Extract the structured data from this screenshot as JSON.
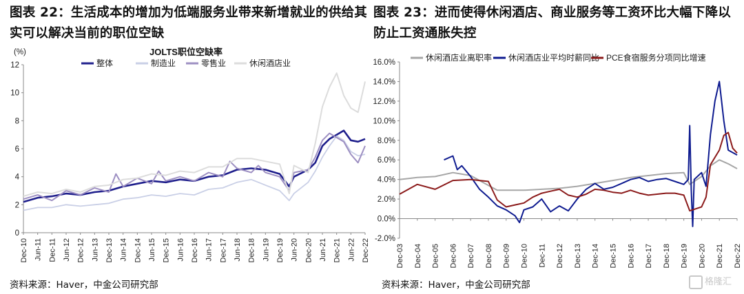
{
  "left": {
    "title": "图表 22：生活成本的增加为低端服务业带来新增就业的供给其实可以解决当前的职位空缺",
    "source": "资料来源：Haver，中金公司研究部"
  },
  "right": {
    "title": "图表 23：进而使得休闲酒店、商业服务等工资环比大幅下降以防止工资通胀失控",
    "source": "资料来源：Haver，中金公司研究部"
  },
  "watermark": "格隆汇",
  "chart_data": [
    {
      "type": "line",
      "title": "JOLTS职位空缺率",
      "unit_label": "(%)",
      "ylim": [
        0,
        12
      ],
      "yticks": [
        0,
        2,
        4,
        6,
        8,
        10,
        12
      ],
      "x_start": "2010-12",
      "x_end": "2022-12",
      "xticks": [
        "Dec-10",
        "Jun-11",
        "Dec-11",
        "Jun-12",
        "Dec-12",
        "Jun-13",
        "Dec-13",
        "Jun-14",
        "Dec-14",
        "Jun-15",
        "Dec-15",
        "Jun-16",
        "Dec-16",
        "Jun-17",
        "Dec-17",
        "Jun-18",
        "Dec-18",
        "Jun-19",
        "Dec-19",
        "Jun-20",
        "Dec-20",
        "Jun-21",
        "Dec-21",
        "Jun-22",
        "Dec-22"
      ],
      "legend_position": "top-center",
      "series": [
        {
          "name": "整体",
          "color": "#1f1f8c",
          "width": 2.6,
          "points": [
            [
              "2010-12",
              2.2
            ],
            [
              "2011-06",
              2.5
            ],
            [
              "2011-12",
              2.6
            ],
            [
              "2012-06",
              2.8
            ],
            [
              "2012-12",
              2.7
            ],
            [
              "2013-06",
              2.9
            ],
            [
              "2013-12",
              3.0
            ],
            [
              "2014-06",
              3.3
            ],
            [
              "2014-12",
              3.5
            ],
            [
              "2015-06",
              3.7
            ],
            [
              "2015-12",
              3.6
            ],
            [
              "2016-06",
              3.8
            ],
            [
              "2016-12",
              3.7
            ],
            [
              "2017-06",
              4.0
            ],
            [
              "2017-12",
              4.1
            ],
            [
              "2018-06",
              4.5
            ],
            [
              "2018-12",
              4.6
            ],
            [
              "2019-06",
              4.5
            ],
            [
              "2019-12",
              4.2
            ],
            [
              "2020-04",
              3.3
            ],
            [
              "2020-06",
              4.0
            ],
            [
              "2020-12",
              4.5
            ],
            [
              "2021-03",
              5.0
            ],
            [
              "2021-06",
              6.2
            ],
            [
              "2021-09",
              6.7
            ],
            [
              "2021-12",
              7.0
            ],
            [
              "2022-03",
              7.3
            ],
            [
              "2022-06",
              6.6
            ],
            [
              "2022-09",
              6.5
            ],
            [
              "2022-12",
              6.7
            ]
          ]
        },
        {
          "name": "制造业",
          "color": "#c9cfe6",
          "width": 1.8,
          "points": [
            [
              "2010-12",
              1.6
            ],
            [
              "2011-06",
              1.8
            ],
            [
              "2011-12",
              1.8
            ],
            [
              "2012-06",
              2.0
            ],
            [
              "2012-12",
              1.9
            ],
            [
              "2013-06",
              2.0
            ],
            [
              "2013-12",
              2.1
            ],
            [
              "2014-06",
              2.4
            ],
            [
              "2014-12",
              2.5
            ],
            [
              "2015-06",
              2.7
            ],
            [
              "2015-12",
              2.6
            ],
            [
              "2016-06",
              2.8
            ],
            [
              "2016-12",
              2.7
            ],
            [
              "2017-06",
              3.1
            ],
            [
              "2017-12",
              3.2
            ],
            [
              "2018-06",
              3.6
            ],
            [
              "2018-12",
              3.8
            ],
            [
              "2019-06",
              3.4
            ],
            [
              "2019-12",
              3.0
            ],
            [
              "2020-04",
              2.3
            ],
            [
              "2020-06",
              2.8
            ],
            [
              "2020-12",
              3.6
            ],
            [
              "2021-03",
              4.4
            ],
            [
              "2021-06",
              5.4
            ],
            [
              "2021-09",
              6.2
            ],
            [
              "2021-12",
              6.9
            ],
            [
              "2022-03",
              6.6
            ],
            [
              "2022-06",
              5.8
            ],
            [
              "2022-09",
              5.5
            ],
            [
              "2022-12",
              5.6
            ]
          ]
        },
        {
          "name": "零售业",
          "color": "#9d8fc2",
          "width": 2.0,
          "points": [
            [
              "2010-12",
              2.4
            ],
            [
              "2011-06",
              2.7
            ],
            [
              "2011-12",
              2.3
            ],
            [
              "2012-06",
              3.0
            ],
            [
              "2012-12",
              2.7
            ],
            [
              "2013-06",
              3.2
            ],
            [
              "2013-12",
              2.9
            ],
            [
              "2014-03",
              4.2
            ],
            [
              "2014-06",
              3.3
            ],
            [
              "2014-12",
              3.9
            ],
            [
              "2015-06",
              3.5
            ],
            [
              "2015-09",
              4.4
            ],
            [
              "2015-12",
              3.7
            ],
            [
              "2016-06",
              4.0
            ],
            [
              "2016-12",
              3.7
            ],
            [
              "2017-06",
              4.3
            ],
            [
              "2017-12",
              4.0
            ],
            [
              "2018-03",
              5.1
            ],
            [
              "2018-06",
              4.6
            ],
            [
              "2018-12",
              4.3
            ],
            [
              "2019-03",
              4.8
            ],
            [
              "2019-06",
              4.3
            ],
            [
              "2019-12",
              4.0
            ],
            [
              "2020-04",
              3.0
            ],
            [
              "2020-06",
              4.3
            ],
            [
              "2020-12",
              4.5
            ],
            [
              "2021-03",
              5.4
            ],
            [
              "2021-06",
              6.6
            ],
            [
              "2021-09",
              7.1
            ],
            [
              "2021-12",
              6.8
            ],
            [
              "2022-03",
              6.5
            ],
            [
              "2022-06",
              5.6
            ],
            [
              "2022-09",
              5.0
            ],
            [
              "2022-12",
              6.2
            ]
          ]
        },
        {
          "name": "休闲酒店业",
          "color": "#dcdcdc",
          "width": 2.0,
          "points": [
            [
              "2010-12",
              2.6
            ],
            [
              "2011-06",
              2.9
            ],
            [
              "2011-12",
              2.8
            ],
            [
              "2012-06",
              3.1
            ],
            [
              "2012-12",
              2.9
            ],
            [
              "2013-06",
              3.3
            ],
            [
              "2013-12",
              3.4
            ],
            [
              "2014-06",
              3.8
            ],
            [
              "2014-12",
              3.9
            ],
            [
              "2015-06",
              4.2
            ],
            [
              "2015-12",
              4.1
            ],
            [
              "2016-06",
              4.4
            ],
            [
              "2016-12",
              4.3
            ],
            [
              "2017-06",
              4.7
            ],
            [
              "2017-12",
              4.7
            ],
            [
              "2018-06",
              5.3
            ],
            [
              "2018-12",
              5.3
            ],
            [
              "2019-06",
              5.1
            ],
            [
              "2019-12",
              4.9
            ],
            [
              "2020-04",
              2.8
            ],
            [
              "2020-06",
              4.8
            ],
            [
              "2020-12",
              4.3
            ],
            [
              "2021-03",
              6.4
            ],
            [
              "2021-06",
              9.0
            ],
            [
              "2021-09",
              10.4
            ],
            [
              "2021-12",
              11.4
            ],
            [
              "2022-03",
              9.8
            ],
            [
              "2022-06",
              8.9
            ],
            [
              "2022-09",
              8.6
            ],
            [
              "2022-12",
              10.8
            ]
          ]
        }
      ]
    },
    {
      "type": "line",
      "ylim": [
        -2,
        16
      ],
      "yticks": [
        "-2.0%",
        "0.0%",
        "2.0%",
        "4.0%",
        "6.0%",
        "8.0%",
        "10.0%",
        "12.0%",
        "14.0%",
        "16.0%"
      ],
      "ytick_values": [
        -2,
        0,
        2,
        4,
        6,
        8,
        10,
        12,
        14,
        16
      ],
      "x_start": "2003-12",
      "x_end": "2022-12",
      "xticks": [
        "Dec-03",
        "Dec-04",
        "Dec-05",
        "Dec-06",
        "Dec-07",
        "Dec-08",
        "Dec-09",
        "Dec-10",
        "Dec-11",
        "Dec-12",
        "Dec-13",
        "Dec-14",
        "Dec-15",
        "Dec-16",
        "Dec-17",
        "Dec-18",
        "Dec-19",
        "Dec-20",
        "Dec-21",
        "Dec-22"
      ],
      "legend_position": "top",
      "series": [
        {
          "name": "休闲酒店业离职率",
          "color": "#a6a6a6",
          "width": 2.0,
          "points": [
            [
              "2003-12",
              4.0
            ],
            [
              "2004-12",
              4.2
            ],
            [
              "2005-12",
              4.3
            ],
            [
              "2006-12",
              4.7
            ],
            [
              "2007-12",
              4.4
            ],
            [
              "2008-12",
              3.4
            ],
            [
              "2009-06",
              2.9
            ],
            [
              "2009-12",
              2.9
            ],
            [
              "2010-12",
              2.9
            ],
            [
              "2011-12",
              3.0
            ],
            [
              "2012-12",
              3.1
            ],
            [
              "2013-12",
              3.3
            ],
            [
              "2014-12",
              3.6
            ],
            [
              "2015-12",
              3.9
            ],
            [
              "2016-12",
              4.2
            ],
            [
              "2017-12",
              4.4
            ],
            [
              "2018-12",
              4.6
            ],
            [
              "2019-12",
              4.7
            ],
            [
              "2020-04",
              3.5
            ],
            [
              "2020-12",
              4.3
            ],
            [
              "2021-06",
              5.4
            ],
            [
              "2021-12",
              6.0
            ],
            [
              "2022-06",
              5.6
            ],
            [
              "2022-12",
              5.1
            ]
          ]
        },
        {
          "name": "休闲酒店业平均时薪同比",
          "color": "#0d1a8f",
          "width": 2.0,
          "points": [
            [
              "2006-06",
              6.0
            ],
            [
              "2006-12",
              6.4
            ],
            [
              "2007-03",
              5.0
            ],
            [
              "2007-06",
              5.4
            ],
            [
              "2007-12",
              4.3
            ],
            [
              "2008-06",
              3.0
            ],
            [
              "2008-12",
              2.2
            ],
            [
              "2009-06",
              1.3
            ],
            [
              "2009-12",
              0.9
            ],
            [
              "2010-06",
              0.3
            ],
            [
              "2010-09",
              -0.4
            ],
            [
              "2010-12",
              0.9
            ],
            [
              "2011-06",
              1.2
            ],
            [
              "2011-12",
              2.0
            ],
            [
              "2012-06",
              0.7
            ],
            [
              "2012-12",
              1.3
            ],
            [
              "2013-06",
              0.8
            ],
            [
              "2013-12",
              2.0
            ],
            [
              "2014-06",
              3.0
            ],
            [
              "2014-12",
              3.6
            ],
            [
              "2015-06",
              3.0
            ],
            [
              "2015-12",
              3.2
            ],
            [
              "2016-06",
              3.6
            ],
            [
              "2016-12",
              4.0
            ],
            [
              "2017-06",
              4.2
            ],
            [
              "2017-12",
              3.8
            ],
            [
              "2018-06",
              4.0
            ],
            [
              "2018-12",
              4.1
            ],
            [
              "2019-06",
              3.8
            ],
            [
              "2019-12",
              3.5
            ],
            [
              "2020-03",
              4.0
            ],
            [
              "2020-04",
              9.5
            ],
            [
              "2020-05",
              3.0
            ],
            [
              "2020-06",
              -0.8
            ],
            [
              "2020-07",
              4.0
            ],
            [
              "2020-12",
              4.7
            ],
            [
              "2021-03",
              3.3
            ],
            [
              "2021-06",
              8.6
            ],
            [
              "2021-09",
              12.0
            ],
            [
              "2021-12",
              14.0
            ],
            [
              "2022-03",
              10.0
            ],
            [
              "2022-06",
              7.0
            ],
            [
              "2022-12",
              6.5
            ]
          ]
        },
        {
          "name": "PCE食宿服务分项同比增速",
          "color": "#8b1a1a",
          "width": 2.0,
          "points": [
            [
              "2003-12",
              2.5
            ],
            [
              "2004-12",
              3.5
            ],
            [
              "2005-12",
              3.0
            ],
            [
              "2006-12",
              3.9
            ],
            [
              "2007-12",
              4.0
            ],
            [
              "2008-12",
              3.8
            ],
            [
              "2009-06",
              1.9
            ],
            [
              "2009-12",
              1.2
            ],
            [
              "2010-06",
              1.4
            ],
            [
              "2010-12",
              1.6
            ],
            [
              "2011-06",
              2.2
            ],
            [
              "2011-12",
              2.6
            ],
            [
              "2012-06",
              2.8
            ],
            [
              "2012-12",
              3.0
            ],
            [
              "2013-06",
              2.4
            ],
            [
              "2013-12",
              2.2
            ],
            [
              "2014-06",
              2.5
            ],
            [
              "2014-12",
              3.0
            ],
            [
              "2015-06",
              2.9
            ],
            [
              "2015-12",
              2.7
            ],
            [
              "2016-06",
              2.6
            ],
            [
              "2016-12",
              2.9
            ],
            [
              "2017-06",
              2.6
            ],
            [
              "2017-12",
              2.4
            ],
            [
              "2018-06",
              2.5
            ],
            [
              "2018-12",
              2.6
            ],
            [
              "2019-06",
              2.6
            ],
            [
              "2019-12",
              2.4
            ],
            [
              "2020-04",
              0.8
            ],
            [
              "2020-12",
              1.2
            ],
            [
              "2021-03",
              2.2
            ],
            [
              "2021-06",
              5.5
            ],
            [
              "2021-12",
              7.0
            ],
            [
              "2022-03",
              8.5
            ],
            [
              "2022-06",
              8.8
            ],
            [
              "2022-09",
              7.2
            ],
            [
              "2022-12",
              6.7
            ]
          ]
        }
      ]
    }
  ]
}
